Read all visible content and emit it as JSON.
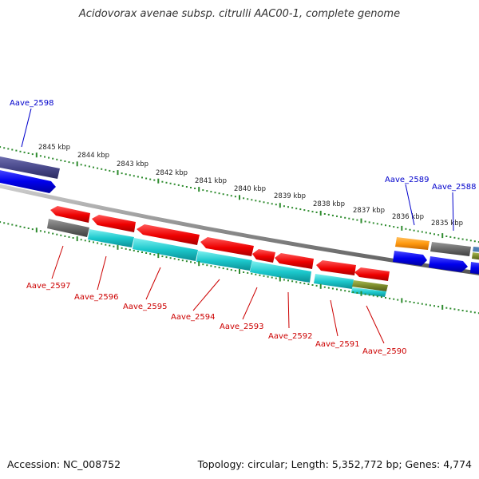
{
  "title": "Acidovorax avenae subsp. citrulli AAC00-1, complete genome",
  "footer": {
    "accession": "Accession: NC_008752",
    "summary": "Topology: circular; Length: 5,352,772 bp; Genes: 4,774"
  },
  "colors": {
    "backbone": "#8c8c8c",
    "tick": "#2e8b2e",
    "forward_label": "#0000cc",
    "reverse_label": "#cc0000",
    "scale_label": "#222222"
  },
  "scale": {
    "unit": "kbp",
    "labels": [
      "2845 kbp",
      "2844 kbp",
      "2843 kbp",
      "2842 kbp",
      "2841 kbp",
      "2840 kbp",
      "2839 kbp",
      "2838 kbp",
      "2837 kbp",
      "2836 kbp",
      "2835 kbp"
    ]
  },
  "forward_genes": [
    {
      "id": "Aave_2598",
      "labelled": true
    },
    {
      "id": "Aave_2589",
      "labelled": true
    },
    {
      "id": "Aave_2588",
      "labelled": true
    }
  ],
  "reverse_genes": [
    {
      "id": "Aave_2597"
    },
    {
      "id": "Aave_2596"
    },
    {
      "id": "Aave_2595"
    },
    {
      "id": "Aave_2594"
    },
    {
      "id": "Aave_2593"
    },
    {
      "id": "Aave_2592"
    },
    {
      "id": "Aave_2591"
    },
    {
      "id": "Aave_2590"
    }
  ]
}
